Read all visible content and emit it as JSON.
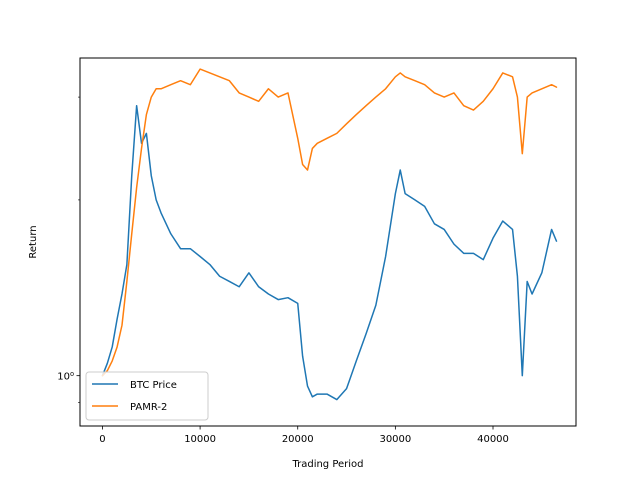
{
  "chart_data": {
    "type": "line",
    "title": "",
    "xlabel": "Trading Period",
    "ylabel": "Return",
    "xlim": [
      -2300,
      48500
    ],
    "ylim": [
      0.82,
      3.5
    ],
    "yscale": "log",
    "x_ticks": [
      0,
      10000,
      20000,
      30000,
      40000
    ],
    "x_tick_labels": [
      "0",
      "10000",
      "20000",
      "30000",
      "40000"
    ],
    "y_major_ticks": [
      1.0
    ],
    "y_major_tick_labels": [
      "10⁰"
    ],
    "y_minor_ticks": [
      0.9,
      2.0,
      3.0
    ],
    "grid": false,
    "legend_position": "lower-left",
    "series": [
      {
        "name": "BTC Price",
        "color": "#1f77b4",
        "x": [
          0,
          500,
          1000,
          1500,
          2000,
          2500,
          3000,
          3500,
          4000,
          4500,
          5000,
          5500,
          6000,
          7000,
          8000,
          9000,
          10000,
          11000,
          12000,
          13000,
          14000,
          15000,
          16000,
          17000,
          18000,
          19000,
          20000,
          20500,
          21000,
          21500,
          22000,
          23000,
          24000,
          25000,
          26000,
          27000,
          28000,
          29000,
          30000,
          30500,
          31000,
          32000,
          33000,
          34000,
          35000,
          36000,
          37000,
          38000,
          39000,
          40000,
          41000,
          42000,
          42500,
          43000,
          43500,
          44000,
          45000,
          46000,
          46500
        ],
        "y": [
          1.0,
          1.05,
          1.12,
          1.25,
          1.38,
          1.55,
          2.2,
          2.9,
          2.5,
          2.6,
          2.2,
          2.0,
          1.9,
          1.75,
          1.65,
          1.65,
          1.6,
          1.55,
          1.48,
          1.45,
          1.42,
          1.5,
          1.42,
          1.38,
          1.35,
          1.36,
          1.33,
          1.08,
          0.96,
          0.92,
          0.93,
          0.93,
          0.91,
          0.95,
          1.06,
          1.18,
          1.32,
          1.6,
          2.05,
          2.25,
          2.05,
          2.0,
          1.95,
          1.82,
          1.78,
          1.68,
          1.62,
          1.62,
          1.58,
          1.72,
          1.84,
          1.78,
          1.48,
          1.0,
          1.45,
          1.38,
          1.5,
          1.78,
          1.7
        ]
      },
      {
        "name": "PAMR-2",
        "color": "#ff7f0e",
        "x": [
          0,
          500,
          1000,
          1500,
          2000,
          2500,
          3000,
          3500,
          4000,
          4500,
          5000,
          5500,
          6000,
          7000,
          8000,
          9000,
          10000,
          11000,
          12000,
          13000,
          14000,
          15000,
          16000,
          17000,
          18000,
          19000,
          20000,
          20500,
          21000,
          21500,
          22000,
          23000,
          24000,
          25000,
          26000,
          27000,
          28000,
          29000,
          30000,
          30500,
          31000,
          32000,
          33000,
          34000,
          35000,
          36000,
          37000,
          38000,
          39000,
          40000,
          41000,
          42000,
          42500,
          43000,
          43500,
          44000,
          45000,
          46000,
          46500
        ],
        "y": [
          1.0,
          1.02,
          1.06,
          1.12,
          1.22,
          1.45,
          1.75,
          2.1,
          2.45,
          2.8,
          3.0,
          3.1,
          3.1,
          3.15,
          3.2,
          3.15,
          3.35,
          3.3,
          3.25,
          3.2,
          3.05,
          3.0,
          2.95,
          3.1,
          3.0,
          3.05,
          2.55,
          2.3,
          2.25,
          2.45,
          2.5,
          2.55,
          2.6,
          2.7,
          2.8,
          2.9,
          3.0,
          3.1,
          3.25,
          3.3,
          3.25,
          3.2,
          3.15,
          3.05,
          3.0,
          3.05,
          2.9,
          2.85,
          2.95,
          3.1,
          3.3,
          3.25,
          3.0,
          2.4,
          3.0,
          3.05,
          3.1,
          3.15,
          3.12
        ]
      }
    ]
  }
}
